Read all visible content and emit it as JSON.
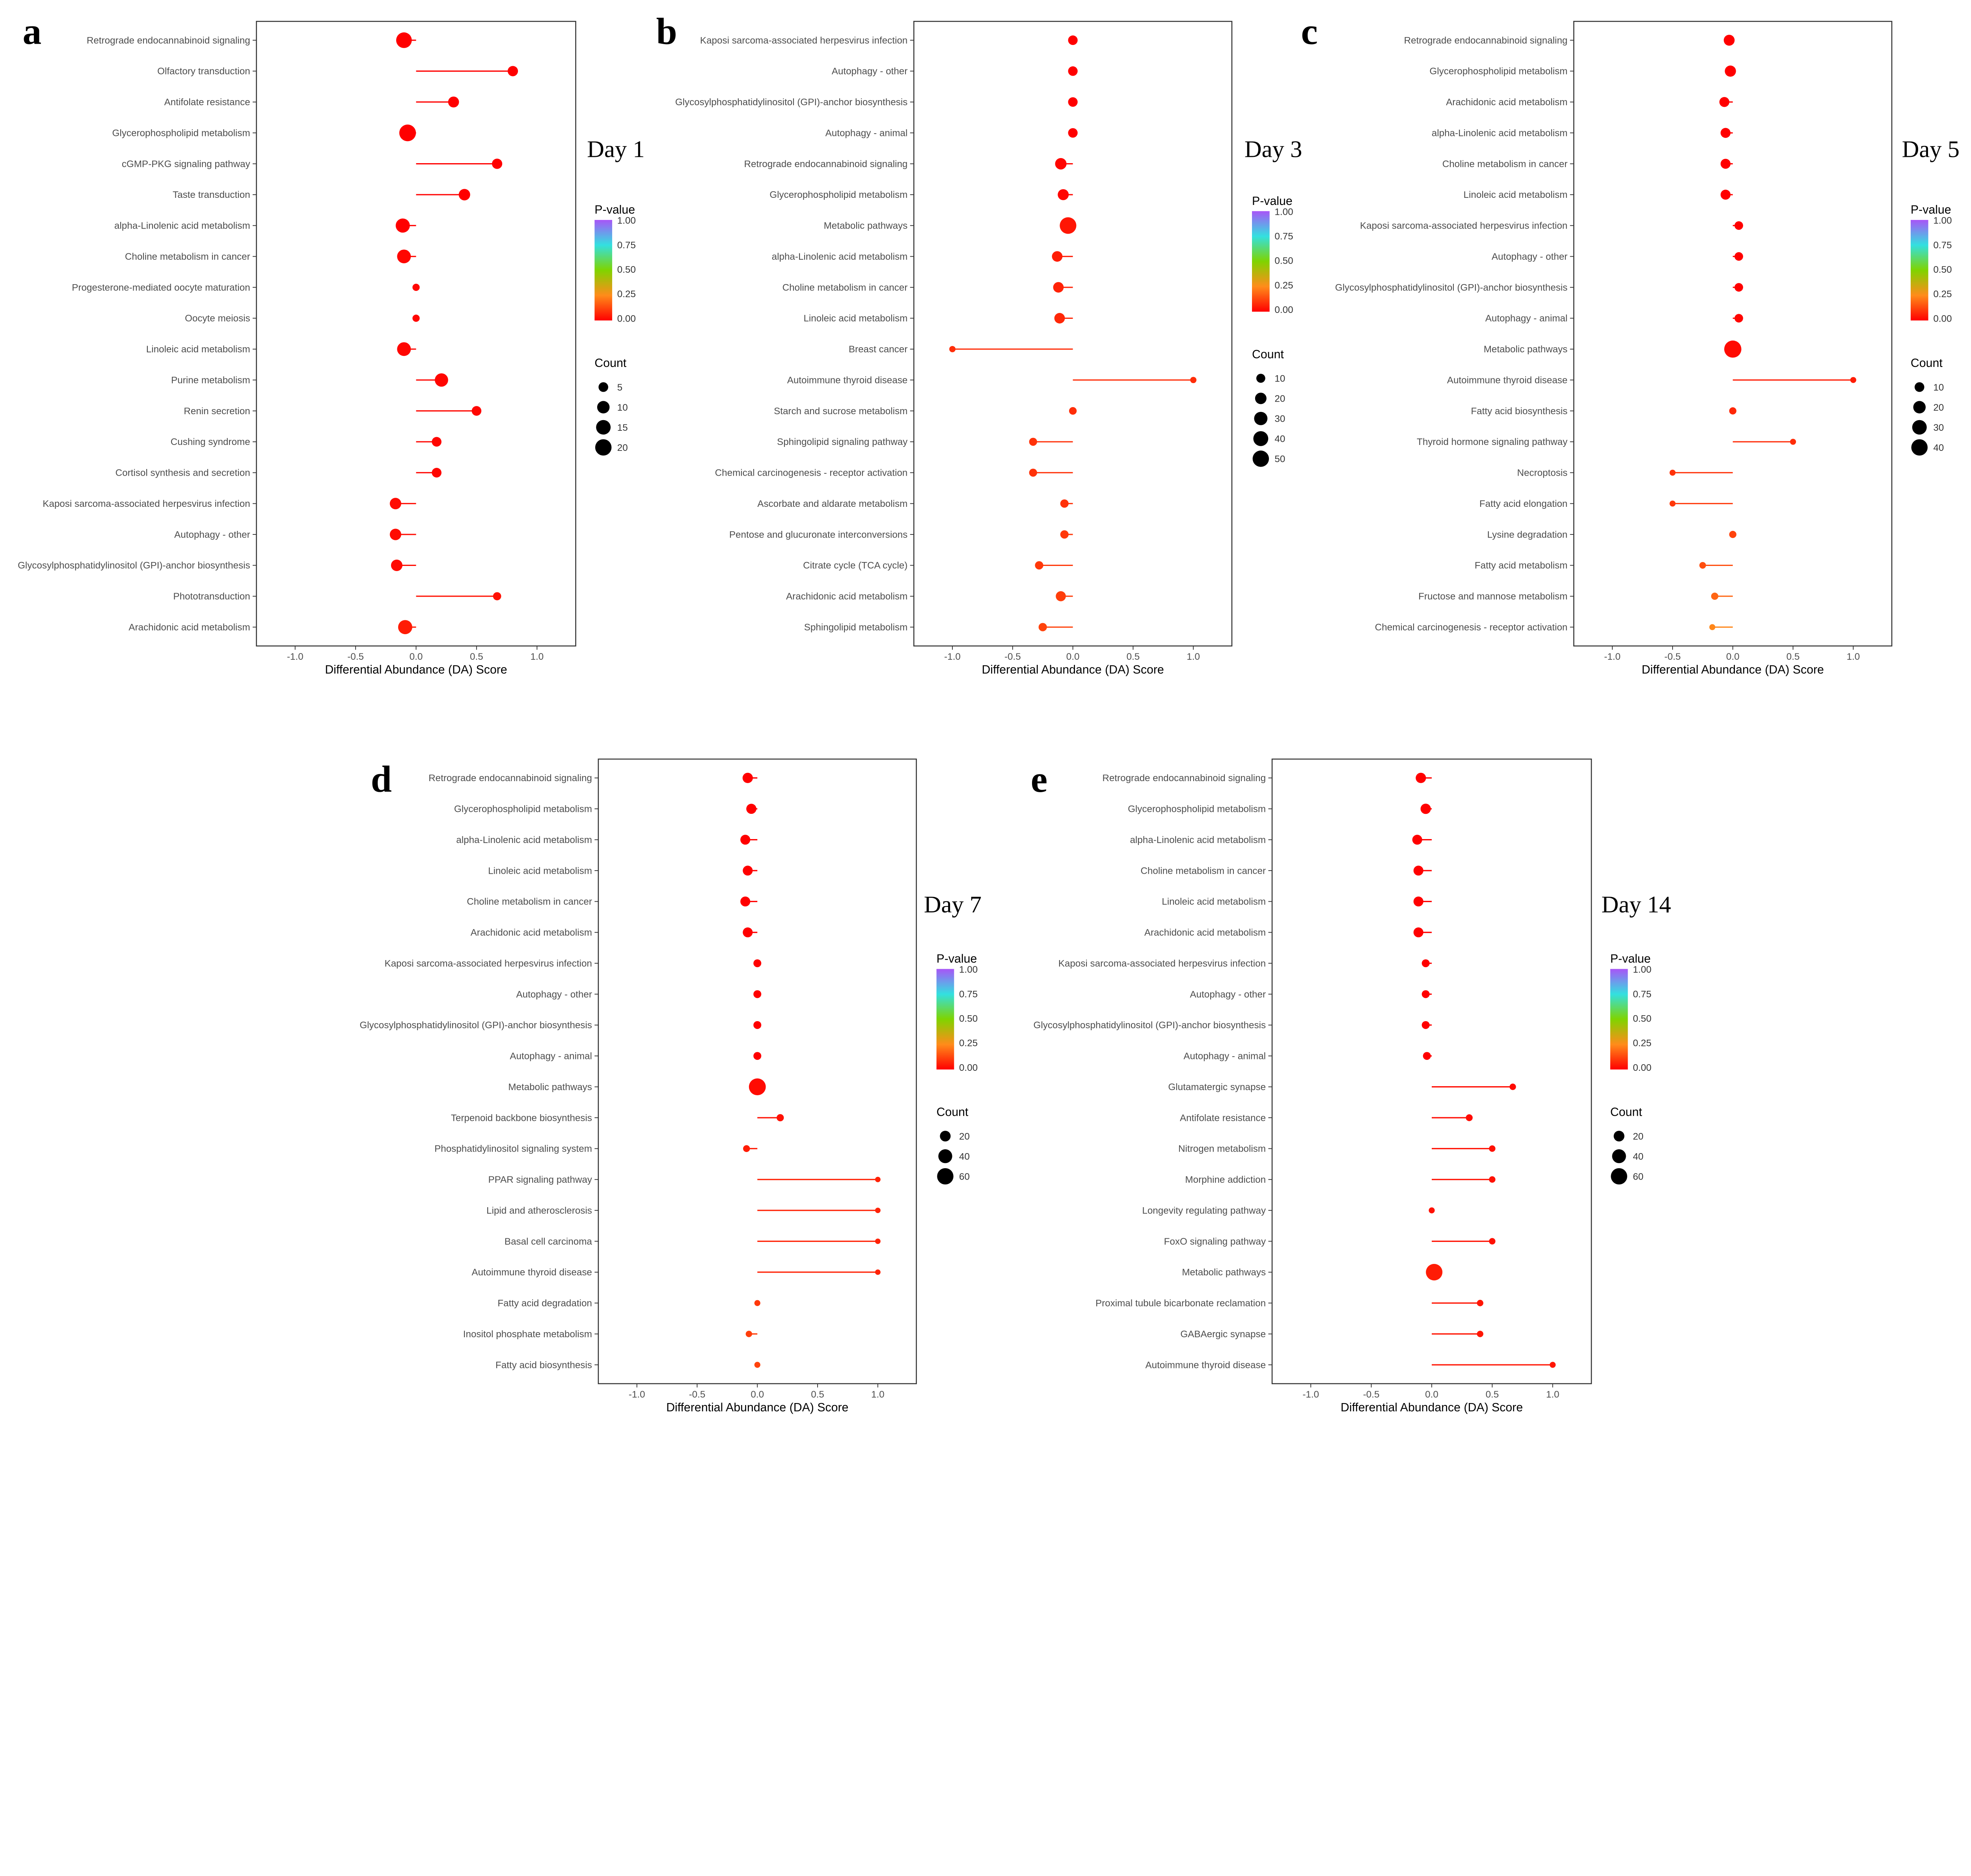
{
  "chart_data": [
    {
      "type": "lollipop",
      "panel": "a",
      "title": "Day 1",
      "xlabel": "Differential Abundance (DA) Score",
      "xlim": [
        -1.32,
        1.32
      ],
      "xticks": [
        "-1.0",
        "-0.5",
        "0.0",
        "0.5",
        "1.0"
      ],
      "legend_pvalue": {
        "title": "P-value",
        "ticks": [
          "1.00",
          "0.75",
          "0.50",
          "0.25",
          "0.00"
        ]
      },
      "legend_count": {
        "title": "Count",
        "values": [
          5,
          10,
          15,
          20
        ]
      },
      "categories": [
        "Retrograde endocannabinoid signaling",
        "Olfactory transduction",
        "Antifolate resistance",
        "Glycerophospholipid metabolism",
        "cGMP-PKG signaling pathway",
        "Taste transduction",
        "alpha-Linolenic acid metabolism",
        "Choline metabolism in cancer",
        "Progesterone-mediated oocyte maturation",
        "Oocyte meiosis",
        "Linoleic acid metabolism",
        "Purine metabolism",
        "Renin secretion",
        "Cushing syndrome",
        "Cortisol synthesis and secretion",
        "Kaposi sarcoma-associated herpesvirus infection",
        "Autophagy - other",
        "Glycosylphosphatidylinositol (GPI)-anchor biosynthesis",
        "Phototransduction",
        "Arachidonic acid metabolism"
      ],
      "da": [
        -0.1,
        0.8,
        0.31,
        -0.07,
        0.67,
        0.4,
        -0.11,
        -0.1,
        0.0,
        0.0,
        -0.1,
        0.21,
        0.5,
        0.17,
        0.17,
        -0.17,
        -0.17,
        -0.16,
        0.67,
        -0.09
      ],
      "count": [
        18,
        6,
        7,
        21,
        6,
        8,
        14,
        13,
        2,
        2,
        13,
        12,
        5,
        5,
        5,
        8,
        8,
        8,
        3,
        14
      ],
      "pvalue": [
        0.0,
        0.0,
        0.0,
        0.0,
        0.0,
        0.0,
        0.0,
        0.01,
        0.01,
        0.01,
        0.01,
        0.01,
        0.01,
        0.01,
        0.01,
        0.02,
        0.02,
        0.02,
        0.03,
        0.05
      ]
    },
    {
      "type": "lollipop",
      "panel": "b",
      "title": "Day 3",
      "xlabel": "Differential Abundance (DA) Score",
      "xlim": [
        -1.32,
        1.32
      ],
      "xticks": [
        "-1.0",
        "-0.5",
        "0.0",
        "0.5",
        "1.0"
      ],
      "legend_pvalue": {
        "title": "P-value",
        "ticks": [
          "1.00",
          "0.75",
          "0.50",
          "0.25",
          "0.00"
        ]
      },
      "legend_count": {
        "title": "Count",
        "values": [
          10,
          20,
          30,
          40,
          50
        ]
      },
      "categories": [
        "Kaposi sarcoma-associated herpesvirus infection",
        "Autophagy - other",
        "Glycosylphosphatidylinositol (GPI)-anchor biosynthesis",
        "Autophagy - animal",
        "Retrograde endocannabinoid signaling",
        "Glycerophospholipid metabolism",
        "Metabolic pathways",
        "alpha-Linolenic acid metabolism",
        "Choline metabolism in cancer",
        "Linoleic acid metabolism",
        "Breast cancer",
        "Autoimmune thyroid disease",
        "Starch and sucrose metabolism",
        "Sphingolipid signaling pathway",
        "Chemical carcinogenesis - receptor activation",
        "Ascorbate and aldarate metabolism",
        "Pentose and glucuronate interconversions",
        "Citrate cycle (TCA cycle)",
        "Arachidonic acid metabolism",
        "Sphingolipid metabolism"
      ],
      "da": [
        0.0,
        0.0,
        0.0,
        0.0,
        -0.1,
        -0.08,
        -0.04,
        -0.13,
        -0.12,
        -0.11,
        -1.0,
        1.0,
        0.0,
        -0.33,
        -0.33,
        -0.07,
        -0.07,
        -0.28,
        -0.1,
        -0.25
      ],
      "count": [
        12,
        12,
        12,
        12,
        20,
        18,
        52,
        16,
        16,
        16,
        3,
        3,
        6,
        7,
        7,
        8,
        8,
        8,
        14,
        8
      ],
      "pvalue": [
        0.0,
        0.0,
        0.0,
        0.0,
        0.01,
        0.01,
        0.04,
        0.05,
        0.06,
        0.07,
        0.08,
        0.08,
        0.08,
        0.09,
        0.09,
        0.09,
        0.1,
        0.1,
        0.11,
        0.12
      ]
    },
    {
      "type": "lollipop",
      "panel": "c",
      "title": "Day 5",
      "xlabel": "Differential Abundance (DA) Score",
      "xlim": [
        -1.32,
        1.32
      ],
      "xticks": [
        "-1.0",
        "-0.5",
        "0.0",
        "0.5",
        "1.0"
      ],
      "legend_pvalue": {
        "title": "P-value",
        "ticks": [
          "1.00",
          "0.75",
          "0.50",
          "0.25",
          "0.00"
        ]
      },
      "legend_count": {
        "title": "Count",
        "values": [
          10,
          20,
          30,
          40
        ]
      },
      "categories": [
        "Retrograde endocannabinoid signaling",
        "Glycerophospholipid metabolism",
        "Arachidonic acid metabolism",
        "alpha-Linolenic acid metabolism",
        "Choline metabolism in cancer",
        "Linoleic acid metabolism",
        "Kaposi sarcoma-associated herpesvirus infection",
        "Autophagy - other",
        "Glycosylphosphatidylinositol (GPI)-anchor biosynthesis",
        "Autophagy - animal",
        "Metabolic pathways",
        "Autoimmune thyroid disease",
        "Fatty acid biosynthesis",
        "Thyroid hormone signaling pathway",
        "Necroptosis",
        "Fatty acid elongation",
        "Lysine degradation",
        "Fatty acid metabolism",
        "Fructose and mannose metabolism",
        "Chemical carcinogenesis - receptor activation"
      ],
      "da": [
        -0.03,
        -0.02,
        -0.07,
        -0.06,
        -0.06,
        -0.06,
        0.05,
        0.05,
        0.05,
        0.05,
        0.0,
        1.0,
        0.0,
        0.5,
        -0.5,
        -0.5,
        0.0,
        -0.25,
        -0.15,
        -0.17
      ],
      "count": [
        14,
        15,
        11,
        11,
        11,
        11,
        7,
        7,
        7,
        7,
        45,
        2,
        4,
        2,
        2,
        2,
        4,
        3,
        4,
        2
      ],
      "pvalue": [
        0.0,
        0.0,
        0.0,
        0.0,
        0.0,
        0.0,
        0.0,
        0.0,
        0.0,
        0.01,
        0.02,
        0.05,
        0.07,
        0.08,
        0.09,
        0.1,
        0.12,
        0.14,
        0.18,
        0.24
      ]
    },
    {
      "type": "lollipop",
      "panel": "d",
      "title": "Day 7",
      "xlabel": "Differential Abundance (DA) Score",
      "xlim": [
        -1.32,
        1.32
      ],
      "xticks": [
        "-1.0",
        "-0.5",
        "0.0",
        "0.5",
        "1.0"
      ],
      "legend_pvalue": {
        "title": "P-value",
        "ticks": [
          "1.00",
          "0.75",
          "0.50",
          "0.25",
          "0.00"
        ]
      },
      "legend_count": {
        "title": "Count",
        "values": [
          20,
          40,
          60
        ]
      },
      "categories": [
        "Retrograde endocannabinoid signaling",
        "Glycerophospholipid metabolism",
        "alpha-Linolenic acid metabolism",
        "Linoleic acid metabolism",
        "Choline metabolism in cancer",
        "Arachidonic acid metabolism",
        "Kaposi sarcoma-associated herpesvirus infection",
        "Autophagy - other",
        "Glycosylphosphatidylinositol (GPI)-anchor biosynthesis",
        "Autophagy - animal",
        "Metabolic pathways",
        "Terpenoid backbone biosynthesis",
        "Phosphatidylinositol signaling system",
        "PPAR signaling pathway",
        "Lipid and atherosclerosis",
        "Basal cell carcinoma",
        "Autoimmune thyroid disease",
        "Fatty acid degradation",
        "Inositol phosphate metabolism",
        "Fatty acid biosynthesis"
      ],
      "da": [
        -0.08,
        -0.05,
        -0.1,
        -0.08,
        -0.1,
        -0.08,
        0.0,
        0.0,
        0.0,
        0.0,
        0.0,
        0.19,
        -0.09,
        1.0,
        1.0,
        1.0,
        1.0,
        0.0,
        -0.07,
        0.0
      ],
      "count": [
        18,
        17,
        16,
        16,
        16,
        16,
        8,
        8,
        8,
        8,
        65,
        6,
        5,
        2,
        2,
        2,
        2,
        3,
        4,
        3
      ],
      "pvalue": [
        0.0,
        0.0,
        0.0,
        0.0,
        0.0,
        0.0,
        0.0,
        0.0,
        0.0,
        0.0,
        0.02,
        0.03,
        0.05,
        0.06,
        0.06,
        0.06,
        0.06,
        0.1,
        0.11,
        0.12
      ]
    },
    {
      "type": "lollipop",
      "panel": "e",
      "title": "Day 14",
      "xlabel": "Differential Abundance (DA) Score",
      "xlim": [
        -1.32,
        1.32
      ],
      "xticks": [
        "-1.0",
        "-0.5",
        "0.0",
        "0.5",
        "1.0"
      ],
      "legend_pvalue": {
        "title": "P-value",
        "ticks": [
          "1.00",
          "0.75",
          "0.50",
          "0.25",
          "0.00"
        ]
      },
      "legend_count": {
        "title": "Count",
        "values": [
          20,
          40,
          60
        ]
      },
      "categories": [
        "Retrograde endocannabinoid signaling",
        "Glycerophospholipid metabolism",
        "alpha-Linolenic acid metabolism",
        "Choline metabolism in cancer",
        "Linoleic acid metabolism",
        "Arachidonic acid metabolism",
        "Kaposi sarcoma-associated herpesvirus infection",
        "Autophagy - other",
        "Glycosylphosphatidylinositol (GPI)-anchor biosynthesis",
        "Autophagy - animal",
        "Glutamatergic synapse",
        "Antifolate resistance",
        "Nitrogen metabolism",
        "Morphine addiction",
        "Longevity regulating pathway",
        "FoxO signaling pathway",
        "Metabolic pathways",
        "Proximal tubule bicarbonate reclamation",
        "GABAergic synapse",
        "Autoimmune thyroid disease"
      ],
      "da": [
        -0.09,
        -0.05,
        -0.12,
        -0.11,
        -0.11,
        -0.11,
        -0.05,
        -0.05,
        -0.05,
        -0.04,
        0.67,
        0.31,
        0.5,
        0.5,
        0.0,
        0.5,
        0.02,
        0.4,
        0.4,
        1.0
      ],
      "count": [
        18,
        18,
        16,
        16,
        16,
        16,
        8,
        8,
        8,
        8,
        4,
        5,
        4,
        4,
        3,
        4,
        62,
        4,
        4,
        3
      ],
      "pvalue": [
        0.0,
        0.0,
        0.0,
        0.0,
        0.0,
        0.0,
        0.0,
        0.0,
        0.0,
        0.0,
        0.02,
        0.02,
        0.03,
        0.03,
        0.03,
        0.03,
        0.05,
        0.04,
        0.04,
        0.04
      ]
    }
  ]
}
